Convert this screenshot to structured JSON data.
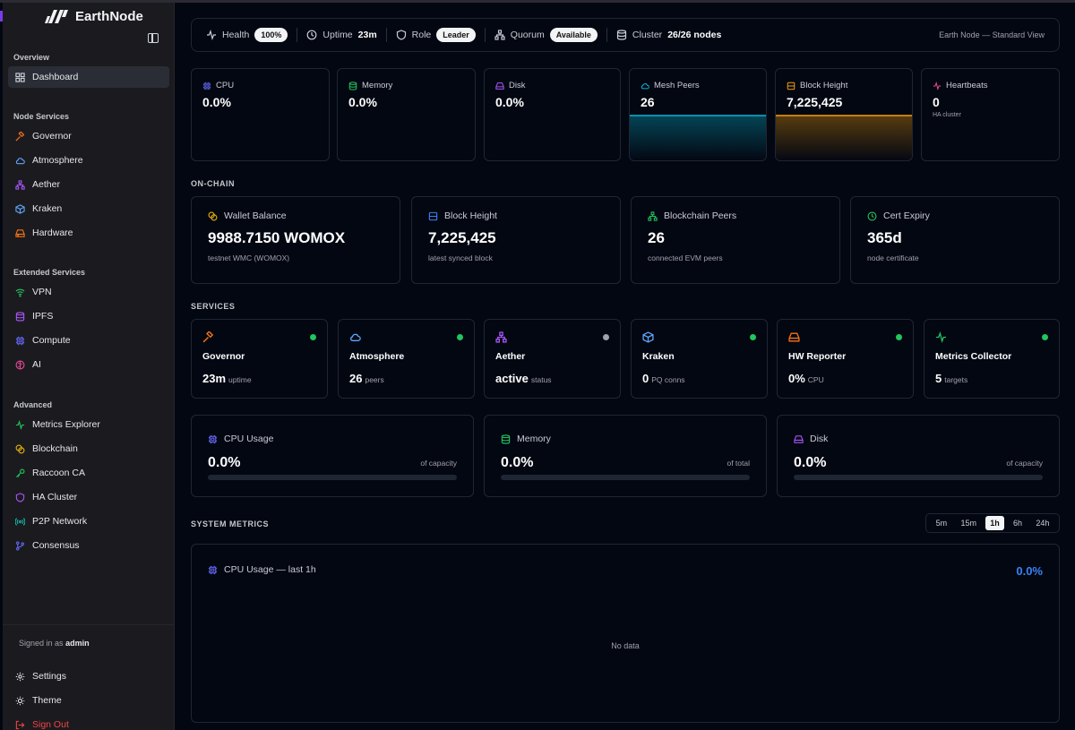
{
  "brand": {
    "name": "EarthNode"
  },
  "sidebar": {
    "sections": {
      "overview": "Overview",
      "node_services": "Node Services",
      "extended": "Extended Services",
      "advanced": "Advanced"
    },
    "items": {
      "dashboard": "Dashboard",
      "governor": "Governor",
      "atmosphere": "Atmosphere",
      "aether": "Aether",
      "kraken": "Kraken",
      "hardware": "Hardware",
      "vpn": "VPN",
      "ipfs": "IPFS",
      "compute": "Compute",
      "ai": "AI",
      "metrics_explorer": "Metrics Explorer",
      "blockchain": "Blockchain",
      "raccoon_ca": "Raccoon CA",
      "ha_cluster": "HA Cluster",
      "p2p_network": "P2P Network",
      "consensus": "Consensus"
    },
    "signed_in_prefix": "Signed in as",
    "signed_in_user": "admin",
    "settings": "Settings",
    "theme": "Theme",
    "sign_out": "Sign Out"
  },
  "topbar": {
    "health_label": "Health",
    "health_value": "100%",
    "uptime_label": "Uptime",
    "uptime_value": "23m",
    "role_label": "Role",
    "role_value": "Leader",
    "quorum_label": "Quorum",
    "quorum_value": "Available",
    "cluster_label": "Cluster",
    "cluster_value": "26/26 nodes",
    "view": "Earth Node — Standard View"
  },
  "stats": {
    "cpu": {
      "label": "CPU",
      "value": "0.0%"
    },
    "memory": {
      "label": "Memory",
      "value": "0.0%"
    },
    "disk": {
      "label": "Disk",
      "value": "0.0%"
    },
    "mesh_peers": {
      "label": "Mesh Peers",
      "value": "26"
    },
    "block_height": {
      "label": "Block Height",
      "value": "7,225,425"
    },
    "heartbeats": {
      "label": "Heartbeats",
      "value": "0",
      "sub": "HA cluster"
    }
  },
  "onchain": {
    "section": "ON-CHAIN",
    "wallet": {
      "label": "Wallet Balance",
      "value": "9988.7150 WOMOX",
      "sub": "testnet WMC (WOMOX)"
    },
    "block": {
      "label": "Block Height",
      "value": "7,225,425",
      "sub": "latest synced block"
    },
    "peers": {
      "label": "Blockchain Peers",
      "value": "26",
      "sub": "connected EVM peers"
    },
    "cert": {
      "label": "Cert Expiry",
      "value": "365d",
      "sub": "node certificate"
    }
  },
  "services": {
    "section": "SERVICES",
    "governor": {
      "name": "Governor",
      "value": "23m",
      "unit": "uptime"
    },
    "atmosphere": {
      "name": "Atmosphere",
      "value": "26",
      "unit": "peers"
    },
    "aether": {
      "name": "Aether",
      "value": "active",
      "unit": "status"
    },
    "kraken": {
      "name": "Kraken",
      "value": "0",
      "unit": "PQ conns"
    },
    "hw": {
      "name": "HW Reporter",
      "value": "0%",
      "unit": "CPU"
    },
    "metrics": {
      "name": "Metrics Collector",
      "value": "5",
      "unit": "targets"
    }
  },
  "resources": {
    "cpu": {
      "label": "CPU Usage",
      "value": "0.0%",
      "right": "of capacity",
      "fill": 0
    },
    "memory": {
      "label": "Memory",
      "value": "0.0%",
      "right": "of total",
      "fill": 0
    },
    "disk": {
      "label": "Disk",
      "value": "0.0%",
      "right": "of capacity",
      "fill": 0
    }
  },
  "system_metrics": {
    "section": "SYSTEM METRICS",
    "ranges": [
      "5m",
      "15m",
      "1h",
      "6h",
      "24h"
    ],
    "active_range": "1h",
    "chart_title": "CPU Usage — last 1h",
    "chart_value": "0.0%",
    "no_data": "No data"
  },
  "colors": {
    "accent": "#3b82f6",
    "online": "#22c55e",
    "offline": "#9ca3af",
    "mesh": "#06b6d4",
    "block": "#f59e0b"
  }
}
